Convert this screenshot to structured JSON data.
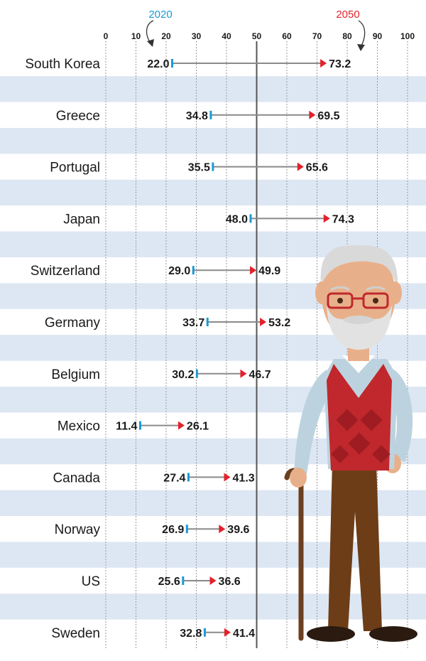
{
  "chart_data": {
    "type": "dumbbell",
    "legend": [
      {
        "label": "2020",
        "color": "#1a9ad6"
      },
      {
        "label": "2050",
        "color": "#e3212b"
      }
    ],
    "xlim": [
      0,
      100
    ],
    "x_ticks": [
      "0",
      "10",
      "20",
      "30",
      "40",
      "50",
      "60",
      "70",
      "80",
      "90",
      "100"
    ],
    "reference_line": 50,
    "grid": true,
    "categories": [
      "South Korea",
      "Greece",
      "Portugal",
      "Japan",
      "Switzerland",
      "Germany",
      "Belgium",
      "Mexico",
      "Canada",
      "Norway",
      "US",
      "Sweden"
    ],
    "series": [
      {
        "name": "2020",
        "values": [
          22.0,
          34.8,
          35.5,
          48.0,
          29.0,
          33.7,
          30.2,
          11.4,
          27.4,
          26.9,
          25.6,
          32.8
        ],
        "labels": [
          "22.0",
          "34.8",
          "35.5",
          "48.0",
          "29.0",
          "33.7",
          "30.2",
          "11.4",
          "27.4",
          "26.9",
          "25.6",
          "32.8"
        ]
      },
      {
        "name": "2050",
        "values": [
          73.2,
          69.5,
          65.6,
          74.3,
          49.9,
          53.2,
          46.7,
          26.1,
          41.3,
          39.6,
          36.6,
          41.4
        ],
        "labels": [
          "73.2",
          "69.5",
          "65.6",
          "74.3",
          "49.9",
          "53.2",
          "46.7",
          "26.1",
          "41.3",
          "39.6",
          "36.6",
          "41.4"
        ]
      }
    ]
  },
  "colors": {
    "band": "#dde7f3",
    "connector": "#8a8a8a",
    "start_marker": "#1a9ad6",
    "end_marker": "#e3212b",
    "reference_line": "#555555"
  },
  "illustration": {
    "name": "elderly-man-with-cane"
  }
}
